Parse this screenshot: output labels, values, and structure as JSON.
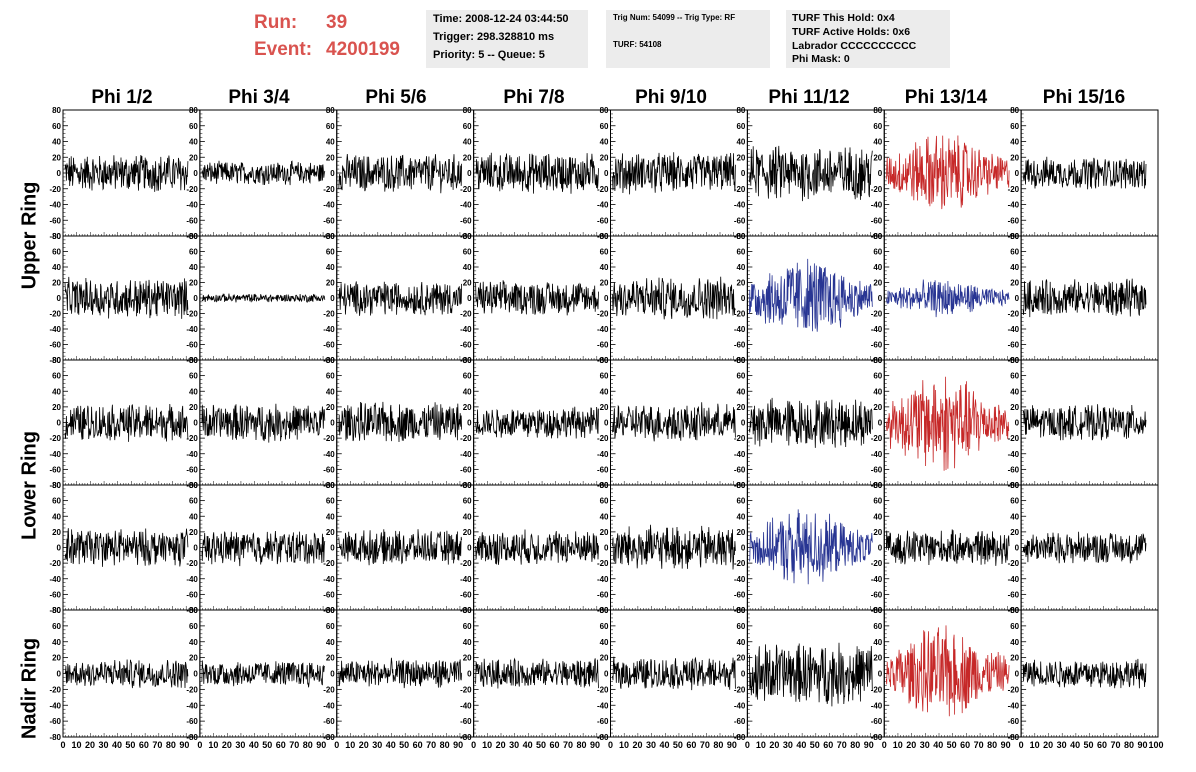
{
  "header": {
    "run_label": "Run:",
    "run_value": "39",
    "event_label": "Event:",
    "event_value": "4200199",
    "info1": [
      "Time: 2008-12-24 03:44:50",
      "Trigger: 298.328810 ms",
      "Priority: 5 -- Queue: 5"
    ],
    "info2": [
      "Trig Num: 54099 -- Trig Type: RF",
      "TURF: 54108"
    ],
    "info3": [
      "TURF This Hold: 0x4",
      "TURF Active Holds: 0x6",
      "Labrador CCCCCCCCCC",
      "Phi Mask: 0"
    ]
  },
  "columns": [
    "Phi 1/2",
    "Phi 3/4",
    "Phi 5/6",
    "Phi 7/8",
    "Phi 9/10",
    "Phi 11/12",
    "Phi 13/14",
    "Phi 15/16"
  ],
  "rings": [
    "Upper Ring",
    "Lower Ring",
    "Nadir Ring"
  ],
  "y_ticks": [
    "80",
    "60",
    "40",
    "20",
    "0",
    "-20",
    "-40",
    "-60",
    "-80"
  ],
  "x_ticks": [
    "0",
    "10",
    "20",
    "30",
    "40",
    "50",
    "60",
    "70",
    "80",
    "90",
    "100"
  ],
  "chart_data": {
    "type": "line",
    "ylim": [
      -80,
      80
    ],
    "xlim": [
      0,
      100
    ],
    "grid": false,
    "colors": {
      "normal": "#000000",
      "triggered_v": "#c62828",
      "triggered_h": "#283593"
    },
    "panels": [
      {
        "row": 0,
        "amps": [
          13,
          8,
          13,
          14,
          14,
          19,
          21,
          11
        ],
        "colors": [
          "k",
          "k",
          "k",
          "k",
          "k",
          "k",
          "r",
          "k"
        ]
      },
      {
        "row": 1,
        "amps": [
          14,
          3,
          12,
          12,
          15,
          22,
          10,
          13
        ],
        "colors": [
          "k",
          "k",
          "k",
          "k",
          "k",
          "b",
          "b",
          "k"
        ]
      },
      {
        "row": 2,
        "amps": [
          13,
          13,
          14,
          11,
          13,
          17,
          26,
          12
        ],
        "colors": [
          "k",
          "k",
          "k",
          "k",
          "k",
          "k",
          "r",
          "k"
        ]
      },
      {
        "row": 3,
        "amps": [
          13,
          12,
          12,
          12,
          15,
          20,
          12,
          11
        ],
        "colors": [
          "k",
          "k",
          "k",
          "k",
          "k",
          "b",
          "k",
          "k"
        ]
      },
      {
        "row": 4,
        "amps": [
          10,
          9,
          10,
          10,
          11,
          21,
          24,
          10
        ],
        "colors": [
          "k",
          "k",
          "k",
          "k",
          "k",
          "k",
          "r",
          "k"
        ]
      }
    ]
  }
}
